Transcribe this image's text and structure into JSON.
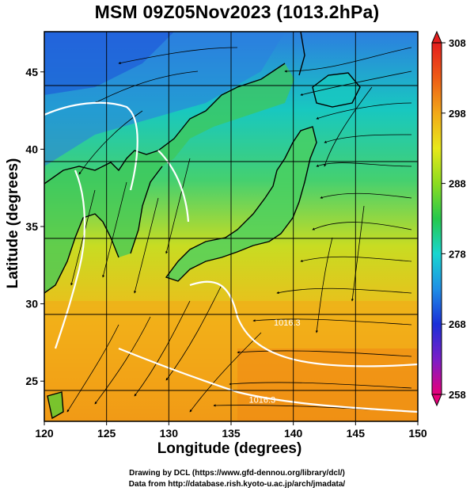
{
  "title": "MSM 09Z05Nov2023 (1013.2hPa)",
  "xlabel": "Longitude (degrees)",
  "ylabel": "Latitude  (degrees)",
  "credits": {
    "line1": "Drawing by DCL (https://www.gfd-dennou.org/library/dcl/)",
    "line2": "Data from http://database.rish.kyoto-u.ac.jp/arch/jmadata/"
  },
  "map": {
    "lon_range": [
      120,
      150
    ],
    "lat_range": [
      22.4,
      47.6
    ],
    "lon_ticks": [
      "120",
      "125",
      "130",
      "135",
      "140",
      "145",
      "150"
    ],
    "lat_ticks": [
      "25",
      "30",
      "35",
      "40",
      "45"
    ],
    "colorbar": {
      "range": [
        258,
        308
      ],
      "ticks": [
        "258",
        "268",
        "278",
        "288",
        "298",
        "308"
      ]
    },
    "contour_labels": [
      {
        "text": "1016.3",
        "lon": 137.5,
        "lat": 23.6
      },
      {
        "text": "1016.3",
        "lon": 139.5,
        "lat": 28.6
      }
    ]
  }
}
